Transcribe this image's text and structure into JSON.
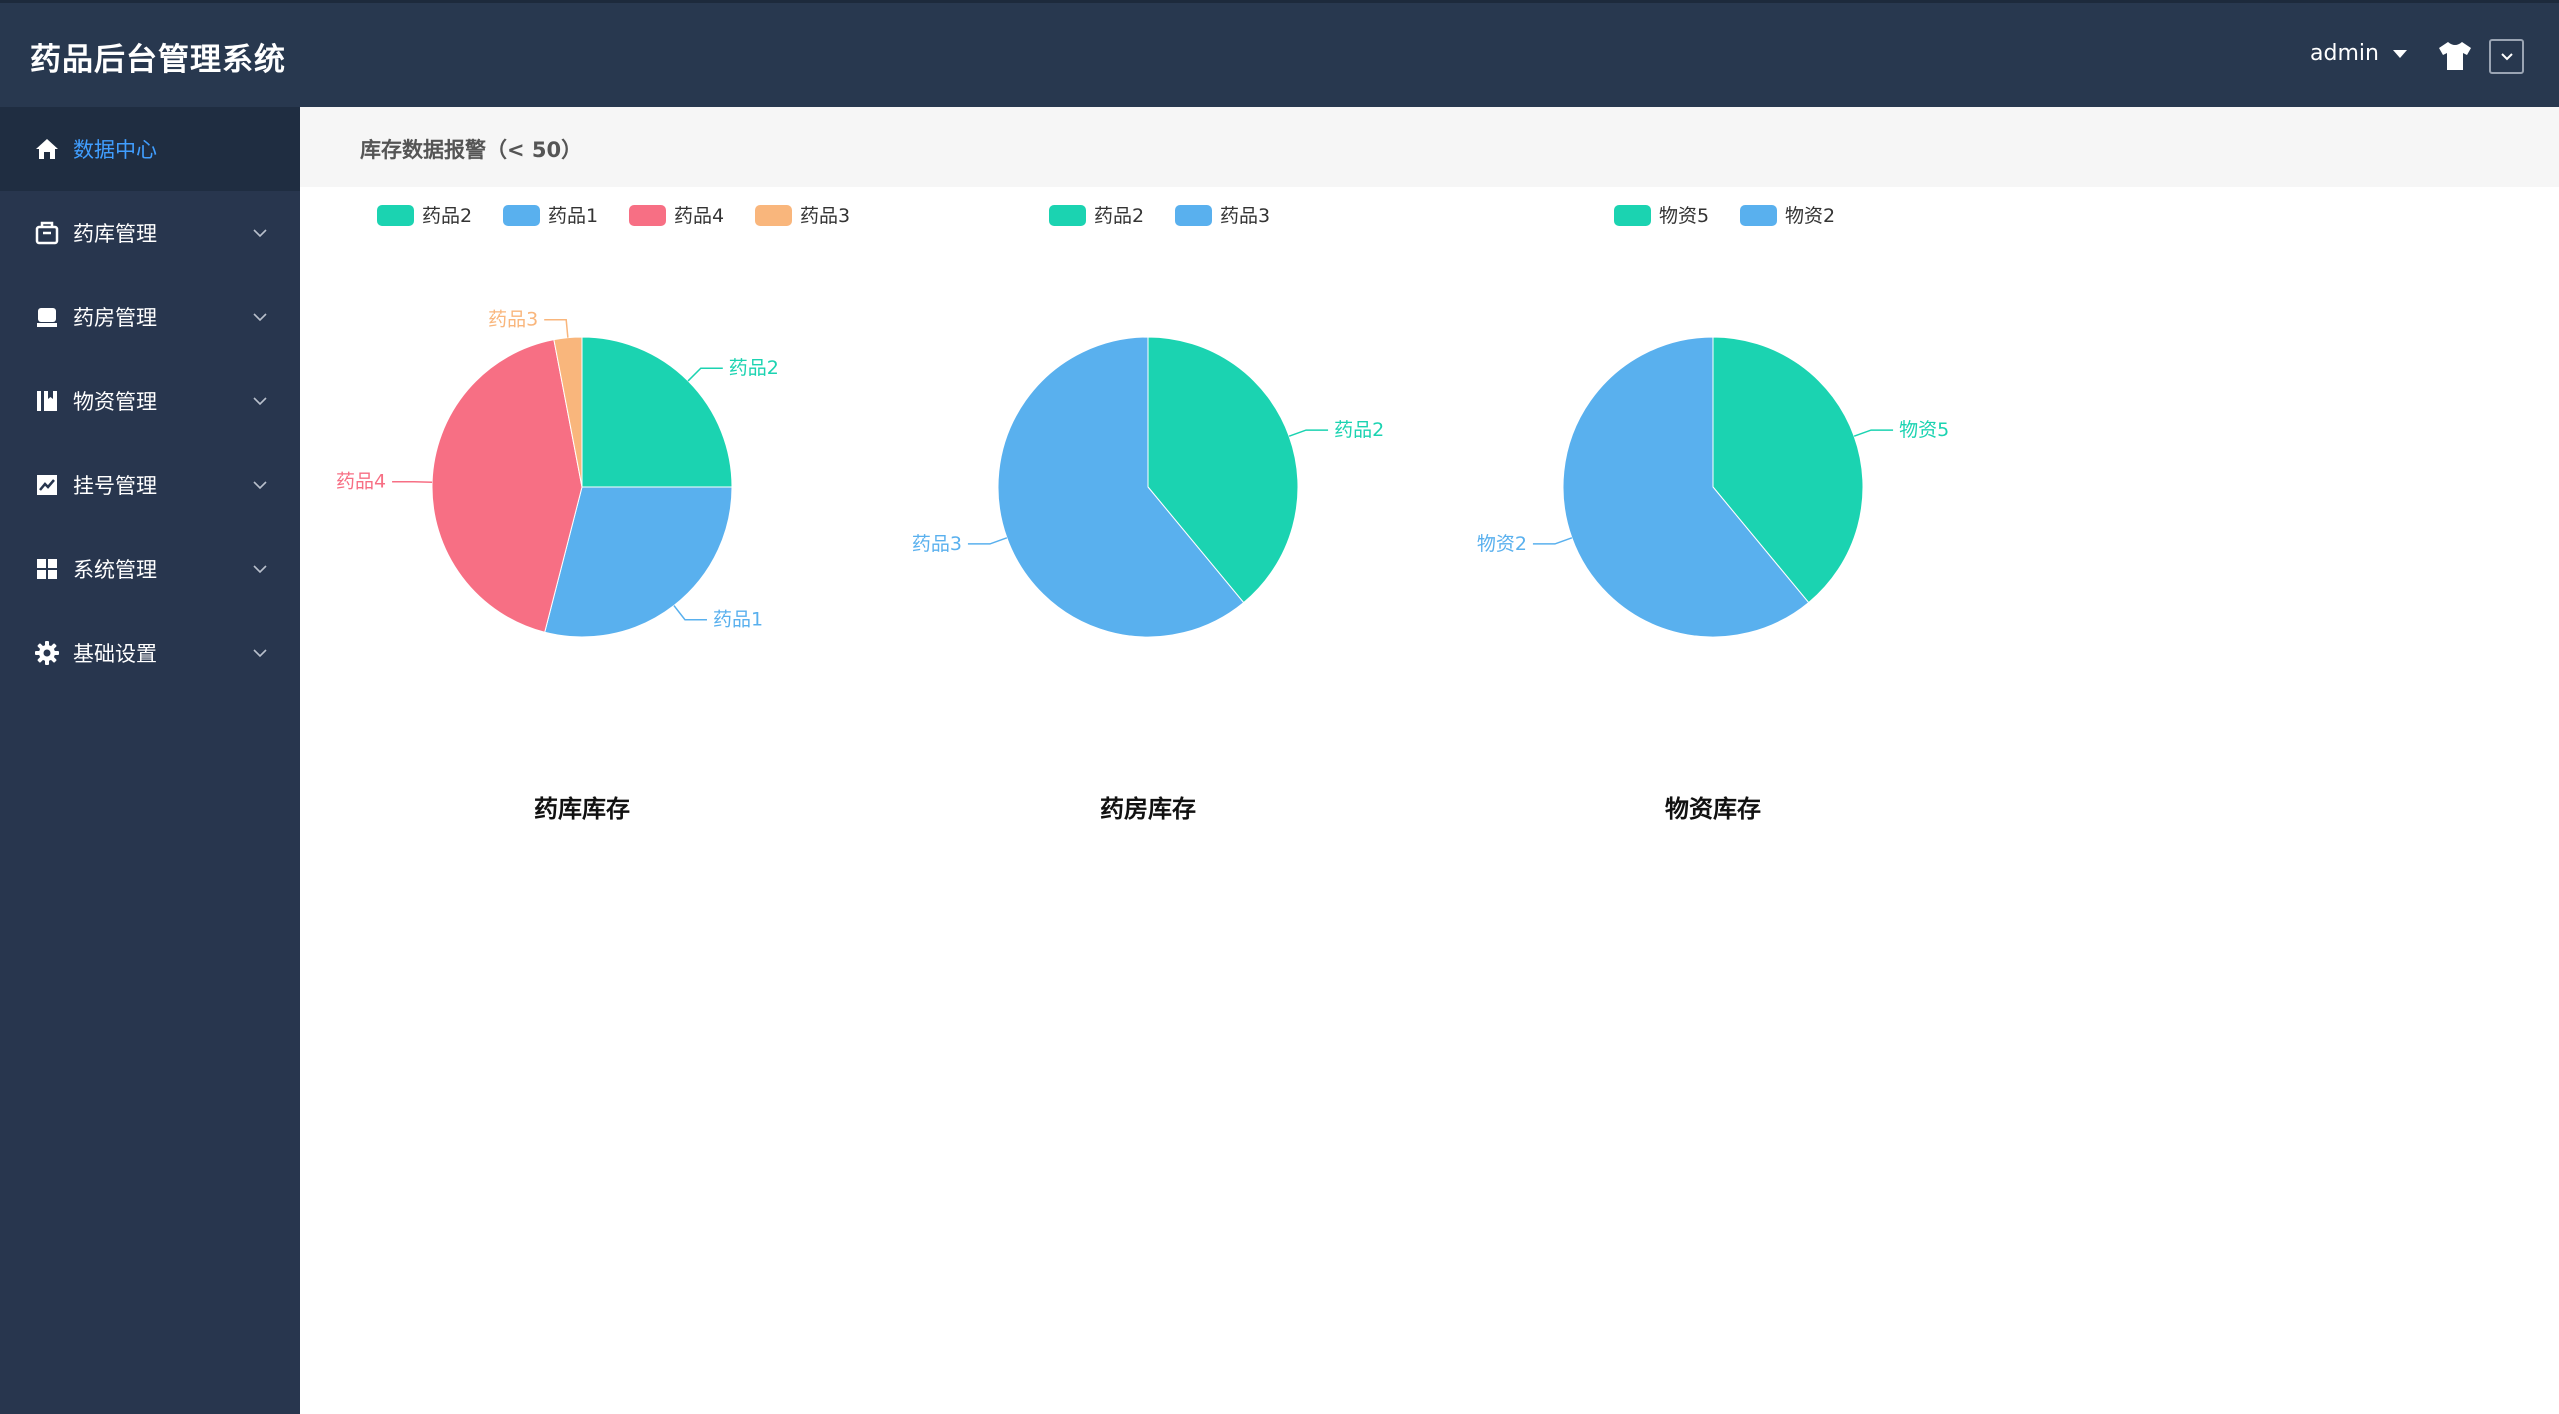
{
  "app": {
    "title": "药品后台管理系统"
  },
  "header": {
    "user": "admin"
  },
  "sidebar": {
    "items": [
      {
        "label": "数据中心",
        "icon": "home-icon",
        "active": true
      },
      {
        "label": "药库管理",
        "icon": "box-icon"
      },
      {
        "label": "药房管理",
        "icon": "store-icon"
      },
      {
        "label": "物资管理",
        "icon": "book-icon"
      },
      {
        "label": "挂号管理",
        "icon": "chart-line-icon"
      },
      {
        "label": "系统管理",
        "icon": "grid-icon"
      },
      {
        "label": "基础设置",
        "icon": "gear-icon"
      }
    ]
  },
  "main": {
    "alert_title": "库存数据报警（< 50）"
  },
  "colors": {
    "green": "#1bd3b1",
    "blue": "#59b0ee",
    "red": "#f76f84",
    "orange": "#f9b67c",
    "accent": "#409eff"
  },
  "chart_data": [
    {
      "type": "pie",
      "title": "药库库存",
      "legend": [
        "药品2",
        "药品1",
        "药品4",
        "药品3"
      ],
      "slices": [
        {
          "label": "药品2",
          "value": 25,
          "color": "#1bd3b1"
        },
        {
          "label": "药品1",
          "value": 29,
          "color": "#59b0ee"
        },
        {
          "label": "药品4",
          "value": 43,
          "color": "#f76f84"
        },
        {
          "label": "药品3",
          "value": 3,
          "color": "#f9b67c"
        }
      ]
    },
    {
      "type": "pie",
      "title": "药房库存",
      "legend": [
        "药品2",
        "药品3"
      ],
      "slices": [
        {
          "label": "药品2",
          "value": 39,
          "color": "#1bd3b1"
        },
        {
          "label": "药品3",
          "value": 61,
          "color": "#59b0ee"
        }
      ]
    },
    {
      "type": "pie",
      "title": "物资库存",
      "legend": [
        "物资5",
        "物资2"
      ],
      "slices": [
        {
          "label": "物资5",
          "value": 39,
          "color": "#1bd3b1"
        },
        {
          "label": "物资2",
          "value": 61,
          "color": "#59b0ee"
        }
      ]
    }
  ]
}
